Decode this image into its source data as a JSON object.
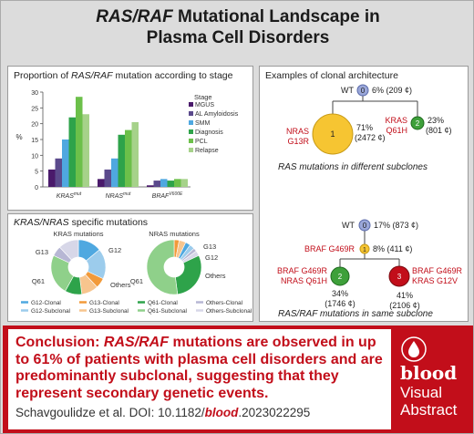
{
  "title": {
    "line1_italic": "RAS/RAF",
    "line1_rest": " Mutational Landscape in",
    "line2": "Plasma Cell Disorders"
  },
  "panel_proportion": {
    "title_pre": "Proportion of ",
    "title_italic": "RAS/RAF",
    "title_post": " mutation according to stage"
  },
  "chart_data": {
    "type": "bar",
    "categories": [
      "KRAS^mut",
      "NRAS^mut",
      "BRAF^V600E"
    ],
    "ylabel": "%",
    "ylim": [
      0,
      30
    ],
    "yticks": [
      0,
      5,
      10,
      15,
      20,
      25,
      30
    ],
    "legend_title": "Stage",
    "series": [
      {
        "name": "MGUS",
        "color": "#4a1a6b",
        "values": [
          5.5,
          2.5,
          0.5
        ]
      },
      {
        "name": "AL Amyloidosis",
        "color": "#5b4a8c",
        "values": [
          9,
          5.5,
          2
        ]
      },
      {
        "name": "SMM",
        "color": "#4fa8e0",
        "values": [
          15,
          9,
          2.5
        ]
      },
      {
        "name": "Diagnosis",
        "color": "#2ea34a",
        "values": [
          22,
          16.5,
          2
        ]
      },
      {
        "name": "PCL",
        "color": "#6cc04a",
        "values": [
          28.5,
          18,
          2.5
        ]
      },
      {
        "name": "Relapse",
        "color": "#a6d28a",
        "values": [
          23,
          20.5,
          2.5
        ]
      }
    ]
  },
  "panel_specific": {
    "title_italic": "KRAS/NRAS",
    "title_post": " specific mutations",
    "kras_title": "KRAS mutations",
    "nras_title": "NRAS mutations",
    "kras_labels": [
      "G13",
      "G12",
      "Q61",
      "Others"
    ],
    "nras_labels": [
      "G13",
      "G12",
      "Others",
      "Q61"
    ],
    "legend": [
      "G12-Clonal",
      "G13-Clonal",
      "Q61-Clonal",
      "Others-Clonal",
      "G12-Subclonal",
      "G13-Subclonal",
      "Q61-Subclonal",
      "Others-Subclonal"
    ]
  },
  "panel_clonal": {
    "title": "Examples of clonal architecture",
    "top": {
      "wt_label": "WT",
      "wt_num": "0",
      "wt_pct": "6% (209 ¢)",
      "n1_num": "1",
      "n1_label_a": "NRAS",
      "n1_label_b": "G13R",
      "n1_pct_a": "71%",
      "n1_pct_b": "(2472 ¢)",
      "n2_num": "2",
      "n2_label_a": "KRAS",
      "n2_label_b": "Q61H",
      "n2_pct_a": "23%",
      "n2_pct_b": "(801 ¢)",
      "caption_italic": "RAS",
      "caption_rest": " mutations in different subclones"
    },
    "bottom": {
      "wt_label": "WT",
      "wt_num": "0",
      "wt_pct": "17% (873 ¢)",
      "n1_num": "1",
      "n1_label": "BRAF G469R",
      "n1_pct": "8% (411 ¢)",
      "n2_num": "2",
      "n2_label_a": "BRAF G469R",
      "n2_label_b": "NRAS Q61H",
      "n2_pct_a": "34%",
      "n2_pct_b": "(1746 ¢)",
      "n3_num": "3",
      "n3_label_a": "BRAF G469R",
      "n3_label_b": "KRAS G12V",
      "n3_pct_a": "41%",
      "n3_pct_b": "(2106 ¢)",
      "caption_italic": "RAS/RAF",
      "caption_rest": " mutations in same subclone"
    }
  },
  "conclusion": {
    "lead": "Conclusion: ",
    "italic": "RAS/RAF",
    "rest": " mutations are observed in up to 61% of patients with plasma cell disorders and are predominantly subclonal, suggesting that they represent secondary genetic events."
  },
  "citation": {
    "pre": "Schavgoulidze et al. DOI: 10.1182/",
    "journal": "blood",
    "post": ".2023022295"
  },
  "logo": {
    "word": "blood",
    "line1": "Visual",
    "line2": "Abstract"
  }
}
